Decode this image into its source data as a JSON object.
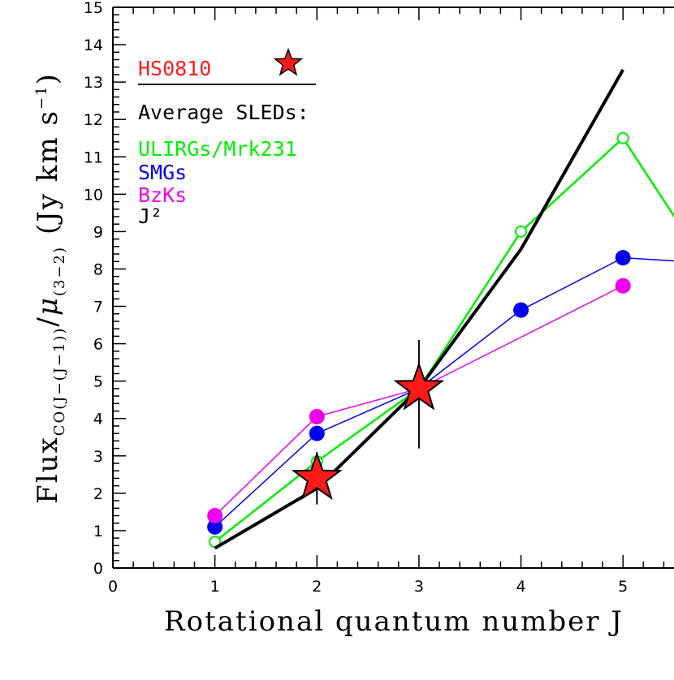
{
  "chart_data": {
    "type": "line",
    "xlabel": "Rotational quantum number J",
    "ylabel": {
      "prefix": "Flux",
      "sub1": "CO(J−(J−1))",
      "slash": "/",
      "mu": "μ",
      "sub2": "(3−2)",
      "units": "(Jy km s",
      "units_exp": "−1",
      "units_close": ")"
    },
    "xlim": [
      0,
      5.5
    ],
    "ylim": [
      0,
      15
    ],
    "xticks": [
      "0",
      "1",
      "2",
      "3",
      "4",
      "5"
    ],
    "yticks": [
      "0",
      "1",
      "2",
      "3",
      "4",
      "5",
      "6",
      "7",
      "8",
      "9",
      "10",
      "11",
      "12",
      "13",
      "14",
      "15"
    ],
    "legend": {
      "target": "HS0810",
      "heading": "Average SLEDs:",
      "entries": [
        {
          "label": "ULIRGs/Mrk231",
          "color": "#00ee00"
        },
        {
          "label": "SMGs",
          "color": "#0000ee"
        },
        {
          "label": "BzKs",
          "color": "#ee00ee"
        },
        {
          "label": "J²",
          "color": "#000000"
        }
      ]
    },
    "series": [
      {
        "name": "ULIRGs/Mrk231",
        "color": "#00ee00",
        "marker": "open-circle",
        "x": [
          1,
          2,
          3,
          4,
          5,
          5.6
        ],
        "y": [
          0.7,
          2.85,
          4.8,
          9.0,
          11.5,
          9.0
        ]
      },
      {
        "name": "SMGs",
        "color": "#0000ee",
        "marker": "filled-circle",
        "x": [
          1,
          2,
          3,
          4,
          5,
          5.6
        ],
        "y": [
          1.1,
          3.6,
          4.8,
          6.9,
          8.3,
          8.2
        ]
      },
      {
        "name": "BzKs",
        "color": "#ee00ee",
        "marker": "filled-circle",
        "x": [
          1,
          2,
          3,
          5
        ],
        "y": [
          1.4,
          4.05,
          4.8,
          7.55
        ]
      },
      {
        "name": "J²",
        "color": "#000000",
        "marker": "none",
        "x": [
          1,
          2,
          3,
          4,
          5
        ],
        "y": [
          0.53,
          2.13,
          4.8,
          8.53,
          13.33
        ]
      }
    ],
    "hs0810": {
      "name": "HS0810",
      "color": "#ff1a1a",
      "points": [
        {
          "x": 2,
          "y": 2.4,
          "yerr_low": 1.7,
          "yerr_high": 3.1
        },
        {
          "x": 3,
          "y": 4.8,
          "yerr_low": 3.2,
          "yerr_high": 6.1
        }
      ]
    }
  }
}
